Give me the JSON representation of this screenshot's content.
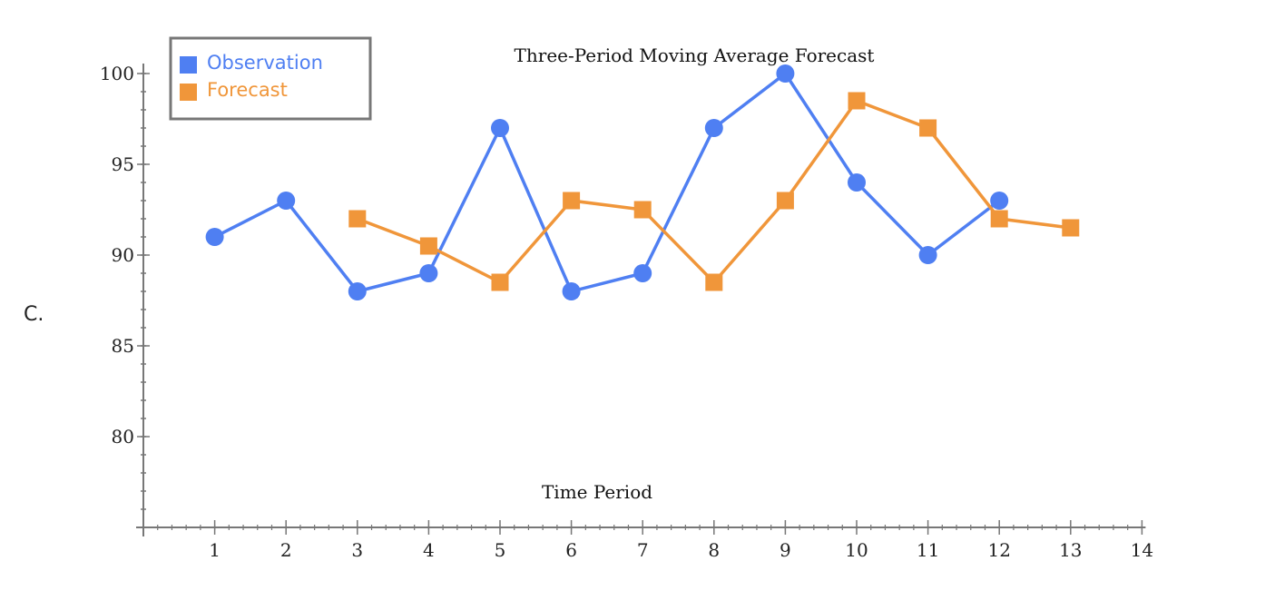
{
  "option_label": "C.",
  "colors": {
    "observation": "#4f7ff2",
    "forecast": "#f0963a",
    "axis": "#777777"
  },
  "chart_data": {
    "type": "line",
    "title": "Three-Period Moving Average Forecast",
    "xlabel": "Time Period",
    "ylabel": "",
    "xlim": [
      0,
      14
    ],
    "ylim": [
      75,
      100
    ],
    "x_ticks": [
      1,
      2,
      3,
      4,
      5,
      6,
      7,
      8,
      9,
      10,
      11,
      12,
      13,
      14
    ],
    "y_ticks": [
      80,
      85,
      90,
      95,
      100
    ],
    "grid": false,
    "legend_position": "top-left",
    "series": [
      {
        "name": "Observation",
        "marker": "circle",
        "x": [
          1,
          2,
          3,
          4,
          5,
          6,
          7,
          8,
          9,
          10,
          11,
          12
        ],
        "y": [
          91,
          93,
          88,
          89,
          97,
          88,
          89,
          97,
          100,
          94,
          90,
          93
        ]
      },
      {
        "name": "Forecast",
        "marker": "square",
        "x": [
          3,
          4,
          5,
          6,
          7,
          8,
          9,
          10,
          11,
          12,
          13
        ],
        "y": [
          92,
          90.5,
          88.5,
          93,
          92.5,
          88.5,
          93,
          98.5,
          97,
          92,
          91.5
        ]
      }
    ]
  }
}
